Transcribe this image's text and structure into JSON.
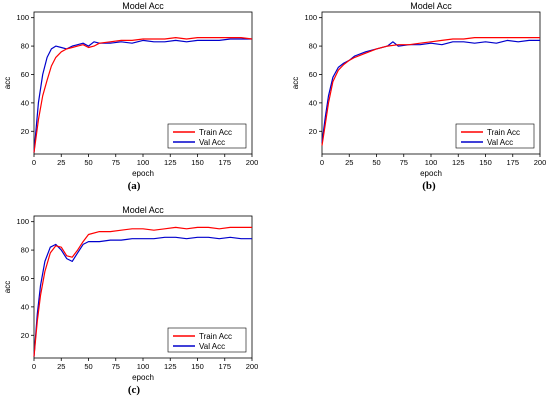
{
  "chart_data": [
    {
      "type": "line",
      "title": "Model Acc",
      "xlabel": "epoch",
      "ylabel": "acc",
      "caption": "(a)",
      "xlim": [
        0,
        200
      ],
      "ylim": [
        4,
        104
      ],
      "xticks": [
        "0",
        "25",
        "50",
        "75",
        "100",
        "125",
        "150",
        "175",
        "200"
      ],
      "yticks": [
        "20",
        "40",
        "60",
        "80",
        "100"
      ],
      "legend_position": "bottom-right",
      "series": [
        {
          "name": "Train Acc",
          "color": "#ff0000",
          "x": [
            0,
            4,
            8,
            12,
            16,
            20,
            25,
            30,
            35,
            40,
            45,
            50,
            55,
            60,
            70,
            80,
            90,
            100,
            110,
            120,
            130,
            140,
            150,
            160,
            170,
            180,
            190,
            200
          ],
          "y": [
            5,
            28,
            45,
            56,
            66,
            72,
            76,
            78,
            79,
            80,
            81,
            79,
            80,
            82,
            83,
            84,
            84,
            85,
            85,
            85,
            86,
            85,
            86,
            86,
            86,
            86,
            86,
            85
          ]
        },
        {
          "name": "Val Acc",
          "color": "#0000cc",
          "x": [
            0,
            4,
            8,
            12,
            16,
            20,
            25,
            30,
            35,
            40,
            45,
            50,
            55,
            60,
            70,
            80,
            90,
            100,
            110,
            120,
            130,
            140,
            150,
            160,
            170,
            180,
            190,
            200
          ],
          "y": [
            5,
            40,
            60,
            72,
            78,
            80,
            79,
            78,
            80,
            81,
            82,
            80,
            83,
            82,
            82,
            83,
            82,
            84,
            83,
            83,
            84,
            83,
            84,
            84,
            84,
            85,
            85,
            85
          ]
        }
      ]
    },
    {
      "type": "line",
      "title": "Model Acc",
      "xlabel": "epoch",
      "ylabel": "acc",
      "caption": "(b)",
      "xlim": [
        0,
        200
      ],
      "ylim": [
        4,
        104
      ],
      "xticks": [
        "0",
        "25",
        "50",
        "75",
        "100",
        "125",
        "150",
        "175",
        "200"
      ],
      "yticks": [
        "20",
        "40",
        "60",
        "80",
        "100"
      ],
      "legend_position": "bottom-right",
      "series": [
        {
          "name": "Train Acc",
          "color": "#ff0000",
          "x": [
            0,
            3,
            6,
            10,
            15,
            20,
            25,
            30,
            40,
            50,
            60,
            70,
            80,
            90,
            100,
            110,
            120,
            130,
            140,
            150,
            160,
            170,
            180,
            190,
            200
          ],
          "y": [
            10,
            25,
            40,
            55,
            63,
            67,
            70,
            72,
            75,
            78,
            80,
            81,
            81,
            82,
            83,
            84,
            85,
            85,
            86,
            86,
            86,
            86,
            86,
            86,
            86
          ]
        },
        {
          "name": "Val Acc",
          "color": "#0000cc",
          "x": [
            0,
            3,
            6,
            10,
            15,
            20,
            25,
            30,
            40,
            50,
            60,
            65,
            70,
            80,
            90,
            100,
            110,
            120,
            130,
            140,
            150,
            160,
            170,
            180,
            190,
            200
          ],
          "y": [
            12,
            30,
            45,
            58,
            65,
            68,
            70,
            73,
            76,
            78,
            80,
            83,
            80,
            81,
            81,
            82,
            81,
            83,
            83,
            82,
            83,
            82,
            84,
            83,
            84,
            84
          ]
        }
      ]
    },
    {
      "type": "line",
      "title": "Model Acc",
      "xlabel": "epoch",
      "ylabel": "acc",
      "caption": "(c)",
      "xlim": [
        0,
        200
      ],
      "ylim": [
        4,
        104
      ],
      "xticks": [
        "0",
        "25",
        "50",
        "75",
        "100",
        "125",
        "150",
        "175",
        "200"
      ],
      "yticks": [
        "20",
        "40",
        "60",
        "80",
        "100"
      ],
      "legend_position": "bottom-right",
      "series": [
        {
          "name": "Train Acc",
          "color": "#ff0000",
          "x": [
            0,
            3,
            6,
            10,
            15,
            20,
            25,
            30,
            35,
            40,
            45,
            50,
            60,
            70,
            80,
            90,
            100,
            110,
            120,
            130,
            140,
            150,
            160,
            170,
            180,
            190,
            200
          ],
          "y": [
            5,
            30,
            48,
            65,
            78,
            83,
            82,
            76,
            75,
            80,
            86,
            91,
            93,
            93,
            94,
            95,
            95,
            94,
            95,
            96,
            95,
            96,
            96,
            95,
            96,
            96,
            96
          ]
        },
        {
          "name": "Val Acc",
          "color": "#0000cc",
          "x": [
            0,
            3,
            6,
            10,
            15,
            20,
            25,
            30,
            35,
            40,
            45,
            50,
            60,
            70,
            80,
            90,
            100,
            110,
            120,
            130,
            140,
            150,
            160,
            170,
            180,
            190,
            200
          ],
          "y": [
            5,
            35,
            55,
            72,
            82,
            84,
            80,
            74,
            72,
            78,
            84,
            86,
            86,
            87,
            87,
            88,
            88,
            88,
            89,
            89,
            88,
            89,
            89,
            88,
            89,
            88,
            88
          ]
        }
      ]
    }
  ]
}
